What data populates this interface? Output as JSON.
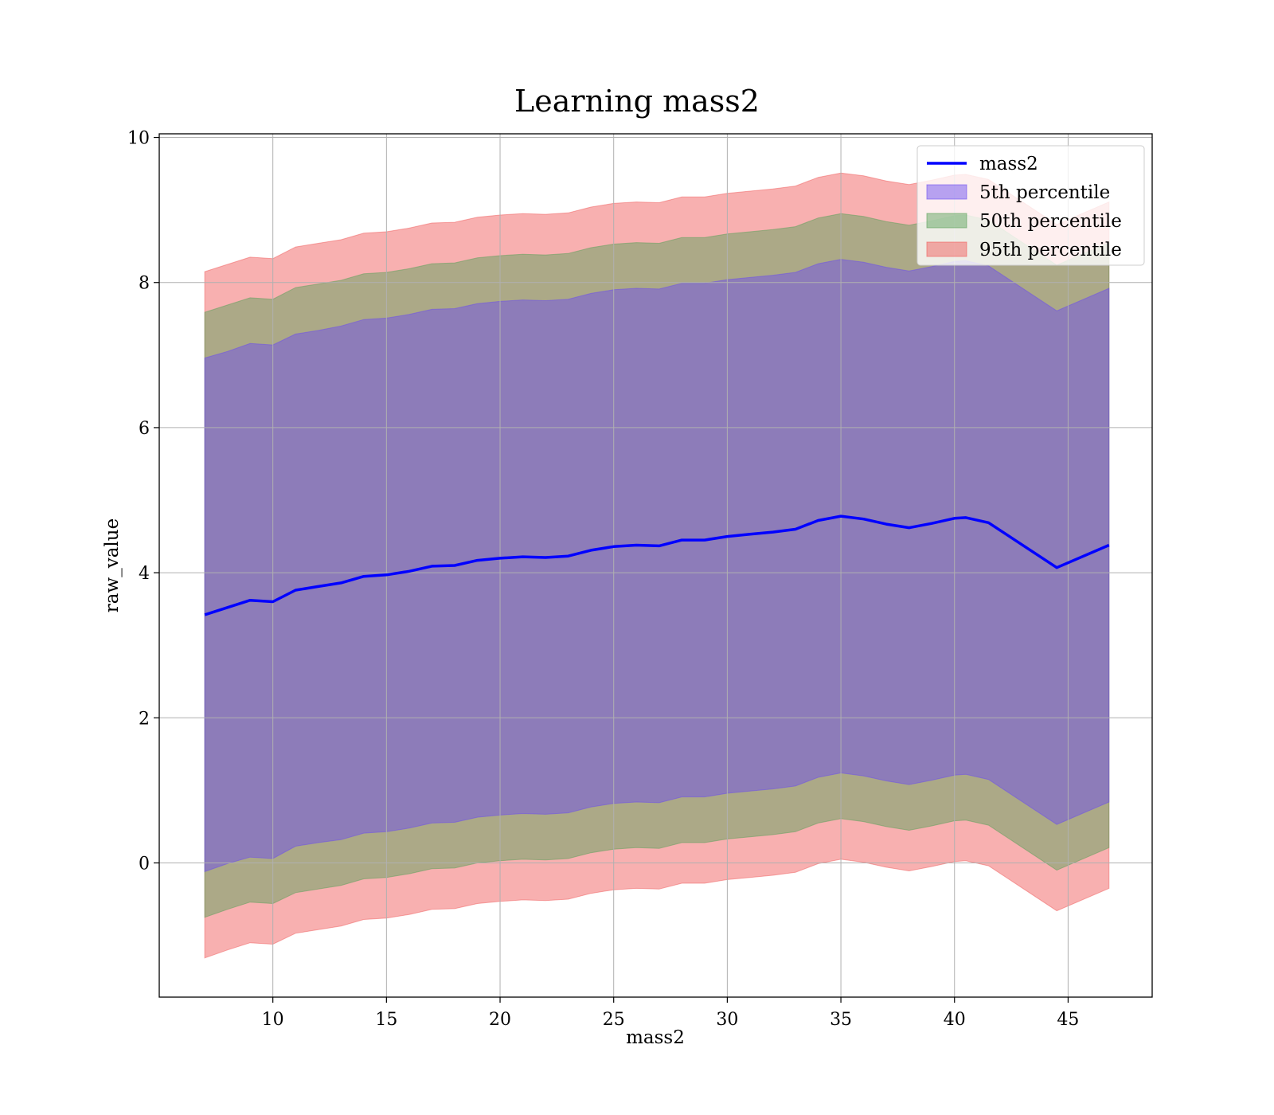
{
  "chart_data": {
    "type": "area",
    "title": "Learning mass2",
    "xlabel": "mass2",
    "ylabel": "raw_value",
    "xlim": [
      5.0,
      48.7
    ],
    "ylim": [
      -1.85,
      10.05
    ],
    "x_ticks": [
      10,
      15,
      20,
      25,
      30,
      35,
      40,
      45
    ],
    "y_ticks": [
      0,
      2,
      4,
      6,
      8,
      10
    ],
    "grid": true,
    "legend_position": "top-right",
    "x": [
      7.0,
      8.0,
      9.0,
      10.0,
      11.0,
      12.0,
      13.0,
      14.0,
      15.0,
      16.0,
      17.0,
      18.0,
      19.0,
      20.0,
      21.0,
      22.0,
      23.0,
      24.0,
      25.0,
      26.0,
      27.0,
      28.0,
      29.0,
      30.0,
      31.0,
      32.0,
      33.0,
      34.0,
      35.0,
      36.0,
      37.0,
      38.0,
      39.0,
      40.0,
      40.5,
      41.5,
      44.5,
      46.8
    ],
    "series": [
      {
        "name": "mass2",
        "kind": "line",
        "color": "#0000ff",
        "values": [
          3.42,
          3.52,
          3.62,
          3.6,
          3.76,
          3.81,
          3.86,
          3.95,
          3.97,
          4.02,
          4.09,
          4.1,
          4.17,
          4.2,
          4.22,
          4.21,
          4.23,
          4.31,
          4.36,
          4.38,
          4.37,
          4.45,
          4.45,
          4.5,
          4.53,
          4.56,
          4.6,
          4.72,
          4.78,
          4.74,
          4.67,
          4.62,
          4.68,
          4.75,
          4.76,
          4.69,
          4.07,
          4.38
        ]
      },
      {
        "name": "5th percentile",
        "kind": "band",
        "color": "#6a4cf0",
        "lower": [
          -0.12,
          -0.01,
          0.08,
          0.06,
          0.23,
          0.28,
          0.32,
          0.41,
          0.43,
          0.48,
          0.55,
          0.56,
          0.63,
          0.66,
          0.68,
          0.67,
          0.69,
          0.77,
          0.82,
          0.84,
          0.83,
          0.91,
          0.91,
          0.96,
          0.99,
          1.02,
          1.06,
          1.18,
          1.24,
          1.2,
          1.13,
          1.08,
          1.14,
          1.21,
          1.22,
          1.15,
          0.53,
          0.84
        ],
        "upper": [
          6.96,
          7.05,
          7.16,
          7.14,
          7.29,
          7.34,
          7.4,
          7.49,
          7.51,
          7.56,
          7.63,
          7.64,
          7.71,
          7.74,
          7.76,
          7.75,
          7.77,
          7.85,
          7.9,
          7.92,
          7.91,
          7.99,
          7.99,
          8.04,
          8.07,
          8.1,
          8.14,
          8.26,
          8.32,
          8.28,
          8.21,
          8.16,
          8.22,
          8.29,
          8.3,
          8.23,
          7.61,
          7.92
        ]
      },
      {
        "name": "50th percentile",
        "kind": "band",
        "color": "#5aa05a",
        "lower": [
          -0.75,
          -0.64,
          -0.54,
          -0.56,
          -0.41,
          -0.36,
          -0.31,
          -0.22,
          -0.2,
          -0.15,
          -0.08,
          -0.07,
          0.0,
          0.03,
          0.05,
          0.04,
          0.06,
          0.14,
          0.19,
          0.21,
          0.2,
          0.28,
          0.28,
          0.33,
          0.36,
          0.39,
          0.43,
          0.55,
          0.61,
          0.57,
          0.5,
          0.45,
          0.51,
          0.58,
          0.59,
          0.52,
          -0.1,
          0.21
        ],
        "upper": [
          7.59,
          7.69,
          7.79,
          7.77,
          7.93,
          7.98,
          8.03,
          8.12,
          8.14,
          8.19,
          8.26,
          8.27,
          8.34,
          8.37,
          8.39,
          8.38,
          8.4,
          8.48,
          8.53,
          8.55,
          8.54,
          8.62,
          8.62,
          8.67,
          8.7,
          8.73,
          8.77,
          8.89,
          8.95,
          8.91,
          8.84,
          8.79,
          8.85,
          8.92,
          8.93,
          8.86,
          8.24,
          8.55
        ]
      },
      {
        "name": "95th percentile",
        "kind": "band",
        "color": "#f05a5a",
        "lower": [
          -1.31,
          -1.2,
          -1.1,
          -1.12,
          -0.97,
          -0.92,
          -0.87,
          -0.78,
          -0.76,
          -0.71,
          -0.64,
          -0.63,
          -0.56,
          -0.53,
          -0.51,
          -0.52,
          -0.5,
          -0.42,
          -0.37,
          -0.35,
          -0.36,
          -0.28,
          -0.28,
          -0.23,
          -0.2,
          -0.17,
          -0.13,
          -0.01,
          0.05,
          0.01,
          -0.06,
          -0.11,
          -0.05,
          0.02,
          0.03,
          -0.04,
          -0.66,
          -0.35
        ],
        "upper": [
          8.15,
          8.25,
          8.35,
          8.33,
          8.49,
          8.54,
          8.59,
          8.68,
          8.7,
          8.75,
          8.82,
          8.83,
          8.9,
          8.93,
          8.95,
          8.94,
          8.96,
          9.04,
          9.09,
          9.11,
          9.1,
          9.18,
          9.18,
          9.23,
          9.26,
          9.29,
          9.33,
          9.45,
          9.51,
          9.47,
          9.4,
          9.35,
          9.41,
          9.48,
          9.49,
          9.42,
          8.8,
          9.11
        ]
      }
    ]
  }
}
